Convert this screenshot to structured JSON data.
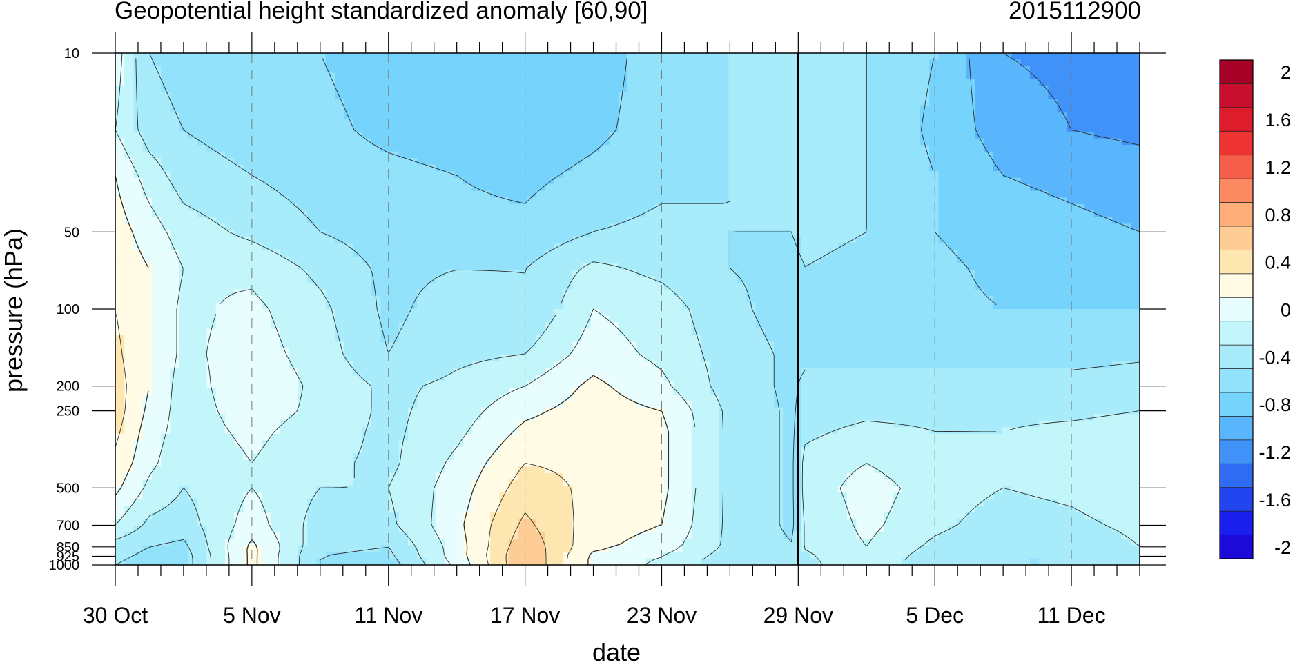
{
  "chart_data": {
    "type": "heatmap",
    "title": "Geopotential height standardized anomaly [60,90]",
    "subtitle": "2015112900",
    "xlabel": "date",
    "ylabel": "pressure (hPa)",
    "x_ticks": [
      "30 Oct",
      "5 Nov",
      "11 Nov",
      "17 Nov",
      "23 Nov",
      "29 Nov",
      "5 Dec",
      "11 Dec"
    ],
    "x_tick_days": [
      0,
      6,
      12,
      18,
      24,
      30,
      36,
      42
    ],
    "x_range_days": [
      0,
      45
    ],
    "y_ticks": [
      "10",
      "50",
      "100",
      "200",
      "250",
      "500",
      "700",
      "850",
      "925",
      "1000"
    ],
    "y_tick_values": [
      10,
      50,
      100,
      200,
      250,
      500,
      700,
      850,
      925,
      1000
    ],
    "y_levels": [
      10,
      20,
      30,
      50,
      70,
      100,
      150,
      200,
      250,
      300,
      400,
      500,
      700,
      850,
      925,
      1000
    ],
    "y_scale": "log",
    "y_reversed": true,
    "date_marker_day": 30,
    "anomaly_field": {
      "days": [
        0,
        1.5,
        3,
        6,
        9,
        12,
        15,
        18,
        21,
        24,
        27,
        29.9,
        30.1,
        33,
        36,
        39,
        42,
        45
      ],
      "rows": [
        [
          -0.1,
          -0.6,
          -0.7,
          -0.75,
          -0.8,
          -0.9,
          -1.0,
          -1.0,
          -0.9,
          -0.7,
          -0.6,
          -0.5,
          -0.5,
          -0.6,
          -0.8,
          -1.2,
          -1.25,
          -1.3
        ],
        [
          -0.2,
          -0.5,
          -0.6,
          -0.7,
          -0.75,
          -0.85,
          -0.9,
          -0.95,
          -0.85,
          -0.7,
          -0.6,
          -0.5,
          -0.5,
          -0.6,
          -0.85,
          -1.1,
          -1.2,
          -1.25
        ],
        [
          0.0,
          -0.3,
          -0.5,
          -0.6,
          -0.7,
          -0.75,
          -0.8,
          -0.85,
          -0.75,
          -0.65,
          -0.6,
          -0.55,
          -0.5,
          -0.6,
          -0.8,
          -1.0,
          -1.05,
          -1.1
        ],
        [
          0.1,
          -0.1,
          -0.3,
          -0.45,
          -0.6,
          -0.7,
          -0.75,
          -0.75,
          -0.6,
          -0.55,
          -0.6,
          -0.6,
          -0.55,
          -0.6,
          -0.8,
          -0.9,
          -0.95,
          -1.0
        ],
        [
          0.15,
          0.0,
          -0.2,
          -0.25,
          -0.45,
          -0.65,
          -0.6,
          -0.6,
          -0.35,
          -0.45,
          -0.6,
          -0.65,
          -0.6,
          -0.65,
          -0.75,
          -0.85,
          -0.9,
          -0.9
        ],
        [
          0.2,
          0.0,
          -0.25,
          -0.15,
          -0.35,
          -0.65,
          -0.5,
          -0.6,
          -0.2,
          -0.3,
          -0.55,
          -0.7,
          -0.6,
          -0.7,
          -0.75,
          -0.8,
          -0.8,
          -0.8
        ],
        [
          0.25,
          0.0,
          -0.25,
          -0.1,
          -0.3,
          -0.6,
          -0.45,
          -0.4,
          -0.1,
          -0.25,
          -0.5,
          -0.65,
          -0.65,
          -0.7,
          -0.7,
          -0.7,
          -0.7,
          -0.65
        ],
        [
          0.3,
          0.0,
          -0.3,
          -0.05,
          -0.25,
          -0.45,
          -0.35,
          -0.2,
          0.05,
          -0.15,
          -0.5,
          -0.65,
          -0.55,
          -0.5,
          -0.5,
          -0.5,
          -0.5,
          -0.45
        ],
        [
          0.3,
          -0.05,
          -0.3,
          -0.1,
          -0.25,
          -0.45,
          -0.3,
          -0.05,
          0.1,
          0.0,
          -0.45,
          -0.65,
          -0.5,
          -0.45,
          -0.45,
          -0.45,
          -0.45,
          -0.4
        ],
        [
          0.25,
          -0.1,
          -0.3,
          -0.15,
          -0.3,
          -0.45,
          -0.25,
          0.05,
          0.15,
          0.05,
          -0.45,
          -0.65,
          -0.45,
          -0.35,
          -0.4,
          -0.4,
          -0.35,
          -0.3
        ],
        [
          0.15,
          -0.15,
          -0.35,
          -0.2,
          -0.35,
          -0.45,
          -0.15,
          0.2,
          0.15,
          0.05,
          -0.45,
          -0.65,
          -0.35,
          -0.2,
          -0.35,
          -0.4,
          -0.35,
          -0.25
        ],
        [
          0.05,
          -0.25,
          -0.4,
          -0.2,
          -0.4,
          -0.4,
          -0.1,
          0.3,
          0.15,
          0.05,
          -0.45,
          -0.65,
          -0.35,
          -0.1,
          -0.3,
          -0.4,
          -0.35,
          -0.25
        ],
        [
          -0.2,
          -0.45,
          -0.5,
          -0.1,
          -0.5,
          -0.45,
          -0.05,
          0.45,
          0.1,
          0.0,
          -0.45,
          -0.65,
          -0.4,
          -0.15,
          -0.35,
          -0.5,
          -0.45,
          -0.35
        ],
        [
          -0.5,
          -0.6,
          -0.65,
          0.05,
          -0.55,
          -0.6,
          -0.1,
          0.55,
          0.05,
          -0.1,
          -0.45,
          -0.6,
          -0.4,
          -0.2,
          -0.45,
          -0.6,
          -0.55,
          -0.4
        ],
        [
          -0.55,
          -0.65,
          -0.7,
          0.05,
          -0.6,
          -0.65,
          -0.1,
          0.6,
          -0.05,
          -0.2,
          -0.5,
          -0.6,
          -0.45,
          -0.25,
          -0.5,
          -0.6,
          -0.6,
          -0.45
        ],
        [
          -0.6,
          -0.7,
          -0.7,
          0.05,
          -0.6,
          -0.7,
          -0.15,
          0.6,
          -0.05,
          -0.25,
          -0.55,
          -0.6,
          -0.45,
          -0.3,
          -0.5,
          -0.6,
          -0.6,
          -0.45
        ]
      ]
    },
    "colorbar": {
      "labels": [
        "2",
        "1.6",
        "1.2",
        "0.8",
        "0.4",
        "0",
        "-0.4",
        "-0.8",
        "-1.2",
        "-1.6",
        "-2"
      ],
      "label_values": [
        2.0,
        1.6,
        1.2,
        0.8,
        0.4,
        0.0,
        -0.4,
        -0.8,
        -1.2,
        -1.6,
        -2.0
      ],
      "levels": [
        2.0,
        1.8,
        1.6,
        1.4,
        1.2,
        1.0,
        0.8,
        0.6,
        0.4,
        0.2,
        0.0,
        -0.2,
        -0.4,
        -0.6,
        -0.8,
        -1.0,
        -1.2,
        -1.4,
        -1.6,
        -1.8,
        -2.0
      ],
      "colors": [
        "#a50026",
        "#c8102e",
        "#dd1c2c",
        "#ee3333",
        "#f55f4c",
        "#fb8a62",
        "#fdae78",
        "#fdcd95",
        "#fde6b0",
        "#fffbe4",
        "#e8fdfd",
        "#c3f6fb",
        "#a8ecfc",
        "#92e2fc",
        "#76d3fc",
        "#5ab6fc",
        "#4192f8",
        "#2f6cf3",
        "#2345f0",
        "#1a1fee",
        "#1b0ad8"
      ]
    }
  }
}
